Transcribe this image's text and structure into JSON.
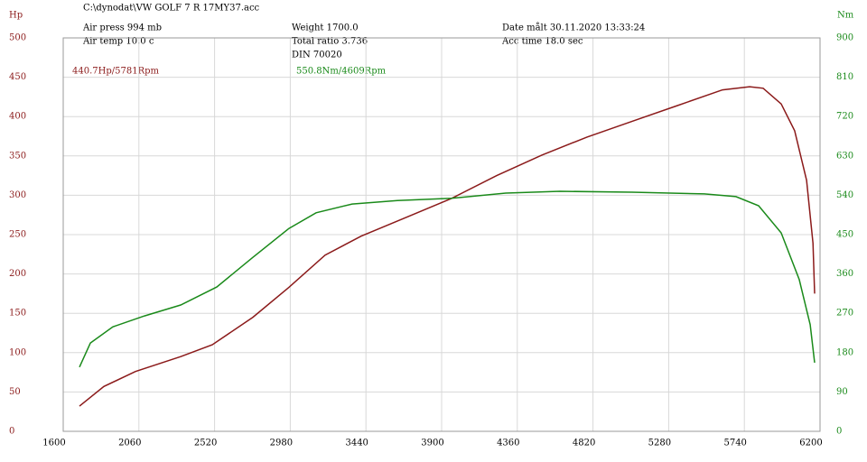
{
  "chart_data": {
    "type": "line",
    "file": "C:\\dynodat\\VW GOLF 7 R 17MY37.acc",
    "air_press": "Air press  994 mb",
    "air_temp": "Air temp  10.0 c",
    "weight": "Weight  1700.0",
    "total_ratio": "Total ratio 3.736",
    "standard": "DIN 70020",
    "date": "Date målt 30.11.2020 13:33:24",
    "acc_time": "Acc time  18.0 sec",
    "y_label": "Hp",
    "y2_label": "Nm",
    "annotations": [
      "440.7Hp/5781Rpm",
      "550.8Nm/4609Rpm"
    ],
    "xlim": [
      1600,
      6200
    ],
    "xticks": [
      1600,
      2060,
      2520,
      2980,
      3440,
      3900,
      4360,
      4820,
      5280,
      5740,
      6200
    ],
    "ylim": [
      0,
      500
    ],
    "yticks": [
      0,
      50,
      100,
      150,
      200,
      250,
      300,
      350,
      400,
      450,
      500
    ],
    "y2lim": [
      0,
      900
    ],
    "y2ticks": [
      0,
      90,
      180,
      270,
      360,
      450,
      540,
      630,
      720,
      810,
      900
    ],
    "grid": true,
    "series": [
      {
        "name": "Hp",
        "color": "#8b1a1a",
        "x": [
          1699,
          1847,
          2039,
          2314,
          2506,
          2753,
          2972,
          3192,
          3411,
          3686,
          3960,
          4235,
          4509,
          4784,
          5058,
          5333,
          5607,
          5772,
          5854,
          5964,
          6046,
          6118,
          6157,
          6167
        ],
        "values": [
          32,
          57,
          76,
          95,
          110,
          145,
          183,
          224,
          248,
          272,
          296,
          325,
          351,
          374,
          394,
          414,
          434,
          438,
          436,
          416,
          382,
          319,
          239,
          175
        ]
      },
      {
        "name": "Nm",
        "color": "#1a8a1a",
        "axis": "y2",
        "x": [
          1699,
          1765,
          1902,
          2094,
          2314,
          2533,
          2753,
          2972,
          3137,
          3356,
          3631,
          3960,
          4290,
          4619,
          5058,
          5497,
          5689,
          5827,
          5964,
          6074,
          6140,
          6167
        ],
        "values": [
          147,
          202,
          239,
          264,
          289,
          330,
          398,
          464,
          500,
          520,
          528,
          533,
          545,
          549,
          547,
          543,
          537,
          516,
          454,
          347,
          244,
          157
        ]
      }
    ]
  }
}
